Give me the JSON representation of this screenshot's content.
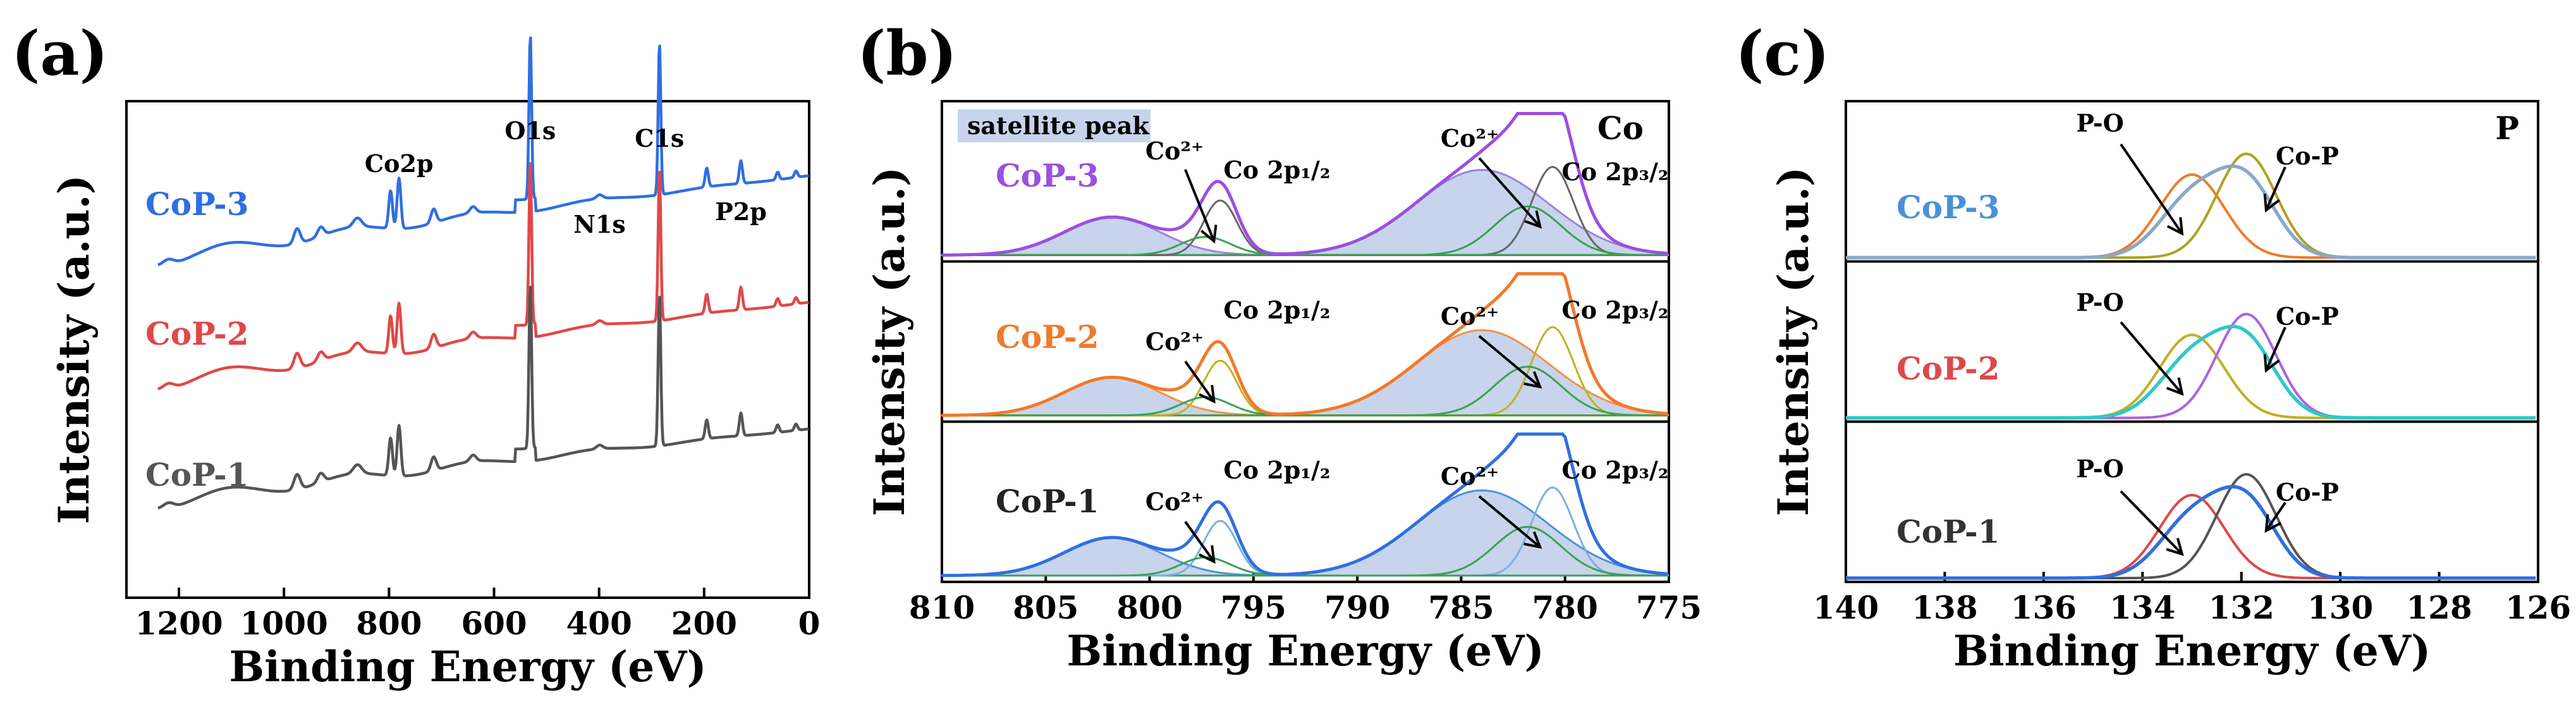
{
  "chart_data": [
    {
      "panel": "(a)",
      "type": "line",
      "xlabel": "Binding Energy (eV)",
      "ylabel": "Intensity (a.u.)",
      "xlim": [
        1300,
        0
      ],
      "xticks": [
        1200,
        1000,
        800,
        600,
        400,
        200,
        0
      ],
      "series": [
        {
          "name": "CoP-3",
          "color": "#2f6fe0",
          "baseline_start": 0.68,
          "baseline_end": 0.85
        },
        {
          "name": "CoP-2",
          "color": "#e04848",
          "baseline_start": 0.43,
          "baseline_end": 0.595
        },
        {
          "name": "CoP-1",
          "color": "#555555",
          "baseline_start": 0.19,
          "baseline_end": 0.34
        }
      ],
      "peaks": [
        {
          "label": "Co2p",
          "x": 781
        },
        {
          "label": "O1s",
          "x": 531
        },
        {
          "label": "N1s",
          "x": 399
        },
        {
          "label": "C1s",
          "x": 285
        },
        {
          "label": "P2p",
          "x": 130
        }
      ]
    },
    {
      "panel": "(b)",
      "type": "line",
      "xlabel": "Binding Energy (eV)",
      "ylabel": "Intensity (a.u.)",
      "xlim": [
        810,
        775
      ],
      "xticks": [
        810,
        805,
        800,
        795,
        790,
        785,
        780,
        775
      ],
      "element": "Co",
      "legend_text": "satellite peak",
      "ion_label": "Co²⁺",
      "label_2p12": "Co 2p₁/₂",
      "label_2p32": "Co 2p₃/₂",
      "samples": [
        {
          "name": "CoP-3",
          "color": "#9b4fe0"
        },
        {
          "name": "CoP-2",
          "color": "#f07a2a"
        },
        {
          "name": "CoP-1",
          "color": "#2f6fe0"
        }
      ],
      "components": [
        {
          "name": "Co 2p3/2 metallic",
          "center": 780.6
        },
        {
          "name": "Co2+ 2p3/2",
          "center": 781.8
        },
        {
          "name": "satellite 2p3/2",
          "center": 784.5
        },
        {
          "name": "Co 2p1/2 metallic",
          "center": 796.6
        },
        {
          "name": "Co2+ 2p1/2",
          "center": 797.2
        },
        {
          "name": "satellite 2p1/2",
          "center": 802.0
        }
      ]
    },
    {
      "panel": "(c)",
      "type": "line",
      "xlabel": "Binding Energy (eV)",
      "ylabel": "Intensity (a.u.)",
      "xlim": [
        140,
        126
      ],
      "xticks": [
        140,
        138,
        136,
        134,
        132,
        130,
        128,
        126
      ],
      "element": "P",
      "samples": [
        {
          "name": "CoP-3",
          "color": "#4a90d9",
          "envelope": "#8aa8c8",
          "po": "#f07a2a",
          "cop": "#b0a020"
        },
        {
          "name": "CoP-2",
          "color": "#e04848",
          "envelope": "#30c8c8",
          "po": "#c0b020",
          "cop": "#b060e0"
        },
        {
          "name": "CoP-1",
          "color": "#333333",
          "envelope": "#2f6fe0",
          "po": "#e04848",
          "cop": "#555555"
        }
      ],
      "components": [
        {
          "name": "P-O",
          "center": 133.0
        },
        {
          "name": "Co-P",
          "center": 132.0
        }
      ]
    }
  ]
}
